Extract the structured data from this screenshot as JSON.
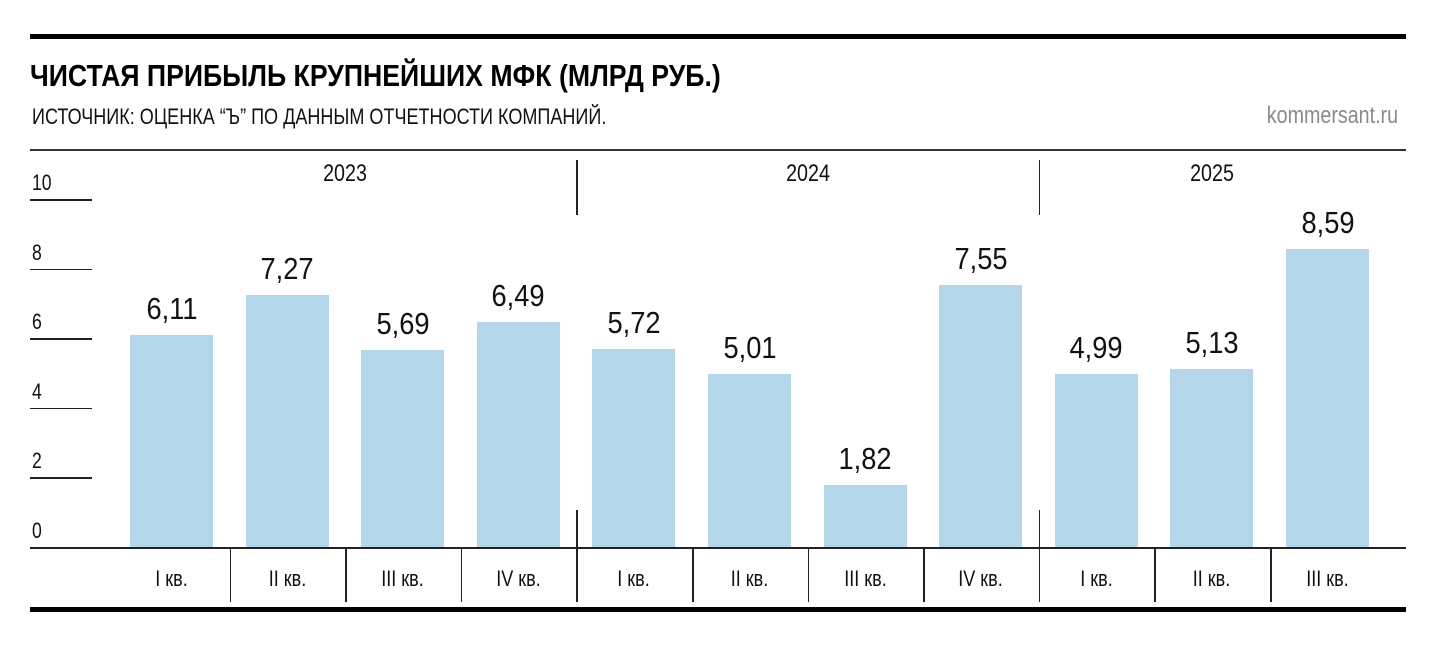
{
  "header": {
    "title": "ЧИСТАЯ ПРИБЫЛЬ КРУПНЕЙШИХ МФК (МЛРД РУБ.)",
    "subtitle": "ИСТОЧНИК: ОЦЕНКА “Ъ” ПО ДАННЫМ ОТЧЕТНОСТИ КОМПАНИЙ.",
    "brand": "kommersant.ru"
  },
  "axis": {
    "y_ticks": [
      "0",
      "2",
      "4",
      "6",
      "8",
      "10"
    ]
  },
  "years": [
    "2023",
    "2024",
    "2025"
  ],
  "bars": [
    {
      "year": "2023",
      "quarter": "I кв.",
      "label": "6,11"
    },
    {
      "year": "2023",
      "quarter": "II кв.",
      "label": "7,27"
    },
    {
      "year": "2023",
      "quarter": "III кв.",
      "label": "5,69"
    },
    {
      "year": "2023",
      "quarter": "IV кв.",
      "label": "6,49"
    },
    {
      "year": "2024",
      "quarter": "I кв.",
      "label": "5,72"
    },
    {
      "year": "2024",
      "quarter": "II кв.",
      "label": "5,01"
    },
    {
      "year": "2024",
      "quarter": "III кв.",
      "label": "1,82"
    },
    {
      "year": "2024",
      "quarter": "IV кв.",
      "label": "7,55"
    },
    {
      "year": "2025",
      "quarter": "I кв.",
      "label": "4,99"
    },
    {
      "year": "2025",
      "quarter": "II кв.",
      "label": "5,13"
    },
    {
      "year": "2025",
      "quarter": "III кв.",
      "label": "8,59"
    }
  ],
  "colors": {
    "bar": "#b4d6ea",
    "rule": "#000000",
    "brand": "#8a8a8a"
  },
  "chart_data": {
    "type": "bar",
    "title": "ЧИСТАЯ ПРИБЫЛЬ КРУПНЕЙШИХ МФК (МЛРД РУБ.)",
    "subtitle": "ИСТОЧНИК: ОЦЕНКА “Ъ” ПО ДАННЫМ ОТЧЕТНОСТИ КОМПАНИЙ.",
    "categories": [
      "I кв. 2023",
      "II кв. 2023",
      "III кв. 2023",
      "IV кв. 2023",
      "I кв. 2024",
      "II кв. 2024",
      "III кв. 2024",
      "IV кв. 2024",
      "I кв. 2025",
      "II кв. 2025",
      "III кв. 2025"
    ],
    "groups": [
      {
        "name": "2023",
        "categories": [
          "I кв.",
          "II кв.",
          "III кв.",
          "IV кв."
        ]
      },
      {
        "name": "2024",
        "categories": [
          "I кв.",
          "II кв.",
          "III кв.",
          "IV кв."
        ]
      },
      {
        "name": "2025",
        "categories": [
          "I кв.",
          "II кв.",
          "III кв."
        ]
      }
    ],
    "values": [
      6.11,
      7.27,
      5.69,
      6.49,
      5.72,
      5.01,
      1.82,
      7.55,
      4.99,
      5.13,
      8.59
    ],
    "xlabel": "",
    "ylabel": "млрд руб.",
    "ylim": [
      0,
      10
    ],
    "y_ticks": [
      0,
      2,
      4,
      6,
      8,
      10
    ],
    "grid": false,
    "legend": null,
    "source": "kommersant.ru"
  }
}
